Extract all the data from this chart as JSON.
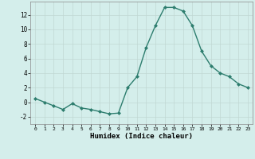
{
  "x": [
    0,
    1,
    2,
    3,
    4,
    5,
    6,
    7,
    8,
    9,
    10,
    11,
    12,
    13,
    14,
    15,
    16,
    17,
    18,
    19,
    20,
    21,
    22,
    23
  ],
  "y": [
    0.5,
    0.0,
    -0.5,
    -1.0,
    -0.2,
    -0.8,
    -1.0,
    -1.3,
    -1.6,
    -1.5,
    2.0,
    3.5,
    7.5,
    10.5,
    13.0,
    13.0,
    12.5,
    10.5,
    7.0,
    5.0,
    4.0,
    3.5,
    2.5,
    2.0
  ],
  "line_color": "#2d7d6e",
  "marker": "D",
  "markersize": 2.0,
  "linewidth": 1.0,
  "xlabel": "Humidex (Indice chaleur)",
  "xlim": [
    -0.5,
    23.5
  ],
  "ylim": [
    -3.0,
    13.8
  ],
  "yticks": [
    -2,
    0,
    2,
    4,
    6,
    8,
    10,
    12
  ],
  "xticks": [
    0,
    1,
    2,
    3,
    4,
    5,
    6,
    7,
    8,
    9,
    10,
    11,
    12,
    13,
    14,
    15,
    16,
    17,
    18,
    19,
    20,
    21,
    22,
    23
  ],
  "bg_color": "#d4eeeb",
  "grid_color": "#c0d8d4",
  "figsize": [
    3.2,
    2.0
  ],
  "dpi": 100
}
